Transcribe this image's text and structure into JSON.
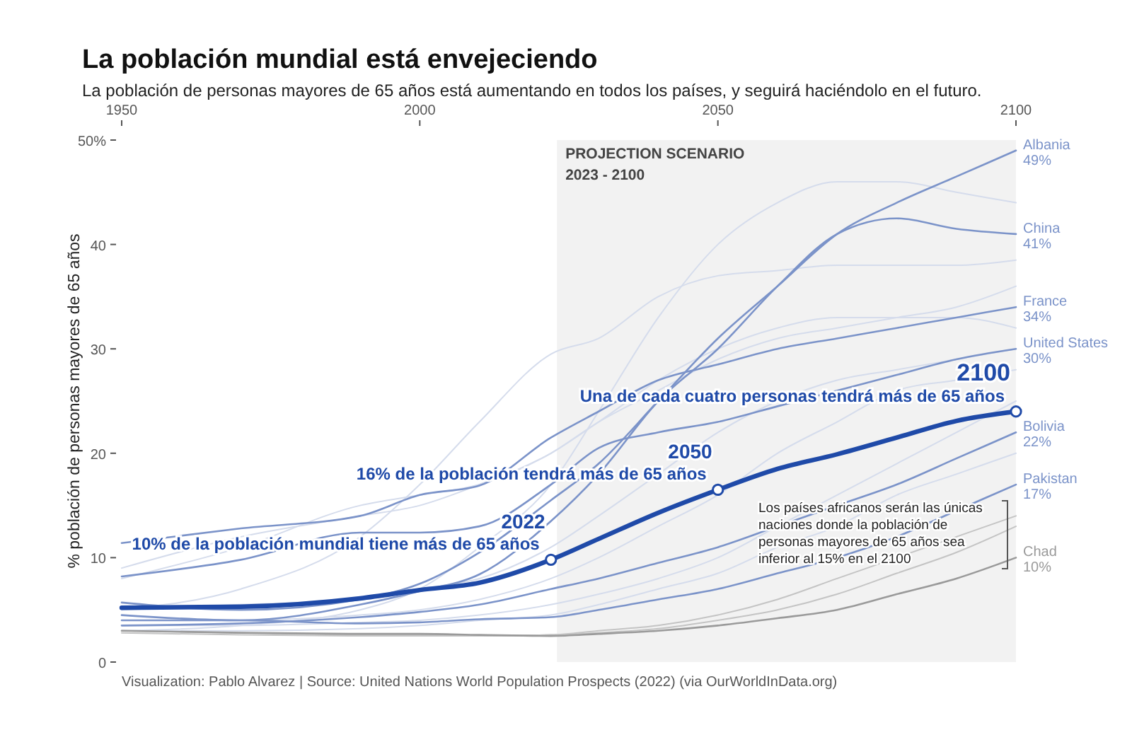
{
  "chart_data": {
    "type": "line",
    "title": "La población mundial está envejeciendo",
    "subtitle": "La población de personas mayores de 65 años está aumentando en todos los países, y seguirá haciéndolo en el futuro.",
    "ylabel": "% población de personas mayores de 65 años",
    "x": [
      1950,
      1970,
      1990,
      2000,
      2010,
      2022,
      2030,
      2040,
      2050,
      2060,
      2070,
      2080,
      2090,
      2100
    ],
    "xlim": [
      1950,
      2100
    ],
    "xticks": [
      1950,
      2000,
      2050,
      2100
    ],
    "ylim": [
      0,
      50
    ],
    "yticks": [
      0,
      10,
      20,
      30,
      40,
      {
        "value": 50,
        "label": "50%"
      }
    ],
    "grid": false,
    "bands": [
      {
        "axis": "x",
        "from": 2023,
        "to": 2100,
        "label": "PROJECTION SCENARIO\n2023 - 2100",
        "color": "#f2f2f2"
      }
    ],
    "series": [
      {
        "color": "#d5dcec",
        "values": [
          5,
          7,
          12,
          17,
          23,
          29.5,
          31,
          35,
          37,
          37.5,
          38,
          38,
          38,
          38.5
        ]
      },
      {
        "color": "#d5dcec",
        "values": [
          3,
          3.5,
          5,
          7,
          11,
          17,
          24,
          33,
          40,
          44,
          46,
          46,
          45,
          44
        ]
      },
      {
        "color": "#d5dcec",
        "values": [
          8,
          11,
          15,
          16,
          17,
          20,
          23,
          26,
          29,
          31,
          32,
          33,
          34,
          36
        ]
      },
      {
        "color": "#d5dcec",
        "values": [
          9,
          12,
          14,
          15,
          17,
          20,
          23,
          27,
          30,
          32,
          33,
          33,
          33,
          32
        ]
      },
      {
        "color": "#d5dcec",
        "values": [
          5,
          5.5,
          6,
          7,
          8,
          11,
          14,
          18,
          22,
          25,
          27,
          28,
          29,
          30
        ]
      },
      {
        "color": "#d5dcec",
        "values": [
          4,
          4,
          4.5,
          5,
          6,
          8,
          10,
          13,
          16,
          20,
          23,
          26,
          27,
          28
        ]
      },
      {
        "color": "#d5dcec",
        "values": [
          3.5,
          3.5,
          3.8,
          4,
          4.5,
          5.5,
          6.5,
          8,
          10,
          13,
          16,
          19,
          22,
          25
        ]
      },
      {
        "color": "#d5dcec",
        "values": [
          3,
          3,
          3.2,
          3.5,
          4,
          4.5,
          5.5,
          7,
          8.5,
          11,
          13,
          16,
          18,
          20
        ]
      },
      {
        "color": "#c4c4c4",
        "values": [
          3,
          2.8,
          2.6,
          2.6,
          2.5,
          2.6,
          2.8,
          3.2,
          4,
          5,
          6.5,
          8.5,
          10.5,
          13
        ]
      },
      {
        "color": "#c4c4c4",
        "values": [
          2.8,
          2.6,
          2.5,
          2.5,
          2.5,
          2.6,
          3,
          3.5,
          4.5,
          6,
          8,
          10,
          12,
          14
        ]
      },
      {
        "name": "Albania",
        "color": "#7b93c9",
        "values": [
          5.7,
          5,
          6,
          7.5,
          10.5,
          15.5,
          19,
          25,
          31,
          36,
          41,
          44,
          46.5,
          49
        ],
        "value_labels": [
          null,
          null,
          null,
          null,
          null,
          null,
          null,
          null,
          null,
          null,
          null,
          null,
          null,
          "49%"
        ]
      },
      {
        "name": "China",
        "color": "#7b93c9",
        "values": [
          4.5,
          4,
          5.5,
          6.8,
          8.4,
          13.5,
          18,
          25,
          30,
          36,
          41,
          42.5,
          41.5,
          41
        ],
        "value_labels": [
          null,
          null,
          null,
          null,
          null,
          null,
          null,
          null,
          null,
          null,
          null,
          null,
          null,
          "41%"
        ]
      },
      {
        "name": "France",
        "color": "#7b93c9",
        "values": [
          11.4,
          12.8,
          14,
          16,
          16.9,
          21.5,
          24,
          27,
          28.5,
          30,
          31,
          32,
          33,
          34
        ],
        "value_labels": [
          null,
          null,
          null,
          null,
          null,
          null,
          null,
          null,
          null,
          null,
          null,
          null,
          null,
          "34%"
        ]
      },
      {
        "name": "United States",
        "color": "#7b93c9",
        "values": [
          8.2,
          9.8,
          12.4,
          12.4,
          13,
          17,
          20.5,
          22,
          23,
          24.5,
          26,
          27.5,
          29,
          30
        ],
        "value_labels": [
          null,
          null,
          null,
          null,
          null,
          null,
          null,
          null,
          null,
          null,
          null,
          null,
          null,
          "30%"
        ]
      },
      {
        "name": "Bolivia",
        "color": "#7b93c9",
        "values": [
          3.5,
          3.7,
          4.3,
          4.8,
          5.5,
          7,
          8,
          9.5,
          11,
          13,
          15,
          17,
          19.5,
          22
        ],
        "value_labels": [
          null,
          null,
          null,
          null,
          null,
          null,
          null,
          null,
          null,
          null,
          null,
          null,
          null,
          "22%"
        ]
      },
      {
        "name": "Pakistan",
        "color": "#7b93c9",
        "values": [
          4,
          4,
          3.7,
          3.8,
          4.1,
          4.3,
          5,
          6,
          7,
          8.5,
          10,
          12,
          14.5,
          17
        ],
        "value_labels": [
          null,
          null,
          null,
          null,
          null,
          null,
          null,
          null,
          null,
          null,
          null,
          null,
          null,
          "17%"
        ]
      },
      {
        "name": "Chad",
        "color": "#9a9a9a",
        "values": [
          3,
          2.8,
          2.7,
          2.7,
          2.6,
          2.5,
          2.7,
          3,
          3.5,
          4.2,
          5,
          6.5,
          8,
          10
        ],
        "value_labels": [
          null,
          null,
          null,
          null,
          null,
          null,
          null,
          null,
          null,
          null,
          null,
          null,
          null,
          "10%"
        ]
      },
      {
        "color": "#1f4aa8",
        "values": [
          5.2,
          5.3,
          6.1,
          6.9,
          7.6,
          9.8,
          11.8,
          14.3,
          16.5,
          18.5,
          19.9,
          21.5,
          23.1,
          24
        ]
      },
      {
        "type": "scatter",
        "color": "#1f4aa8",
        "marker": "circle",
        "x": [
          2022,
          2050,
          2100
        ],
        "values": [
          9.8,
          16.5,
          24
        ]
      }
    ],
    "annotations": [
      {
        "text": "10% de la población mundial tiene más de 65 años",
        "x": 2022,
        "y": 9.8
      },
      {
        "text": "2022",
        "x": 2022,
        "y": 9.8
      },
      {
        "text": "16% de la población tendrá más de 65 años",
        "x": 2050,
        "y": 16.5
      },
      {
        "text": "2050",
        "x": 2050,
        "y": 16.5
      },
      {
        "text": "Una de cada cuatro personas tendrá más de 65 años",
        "x": 2100,
        "y": 24
      },
      {
        "text": "2100",
        "x": 2100,
        "y": 24
      },
      "Los países africanos serán las únicas naciones donde la población de personas mayores de 65 años sea inferior al 15% en el 2100",
      "Visualization: Pablo Alvarez | Source: United Nations World Population Prospects (2022) (via OurWorldInData.org)"
    ]
  }
}
